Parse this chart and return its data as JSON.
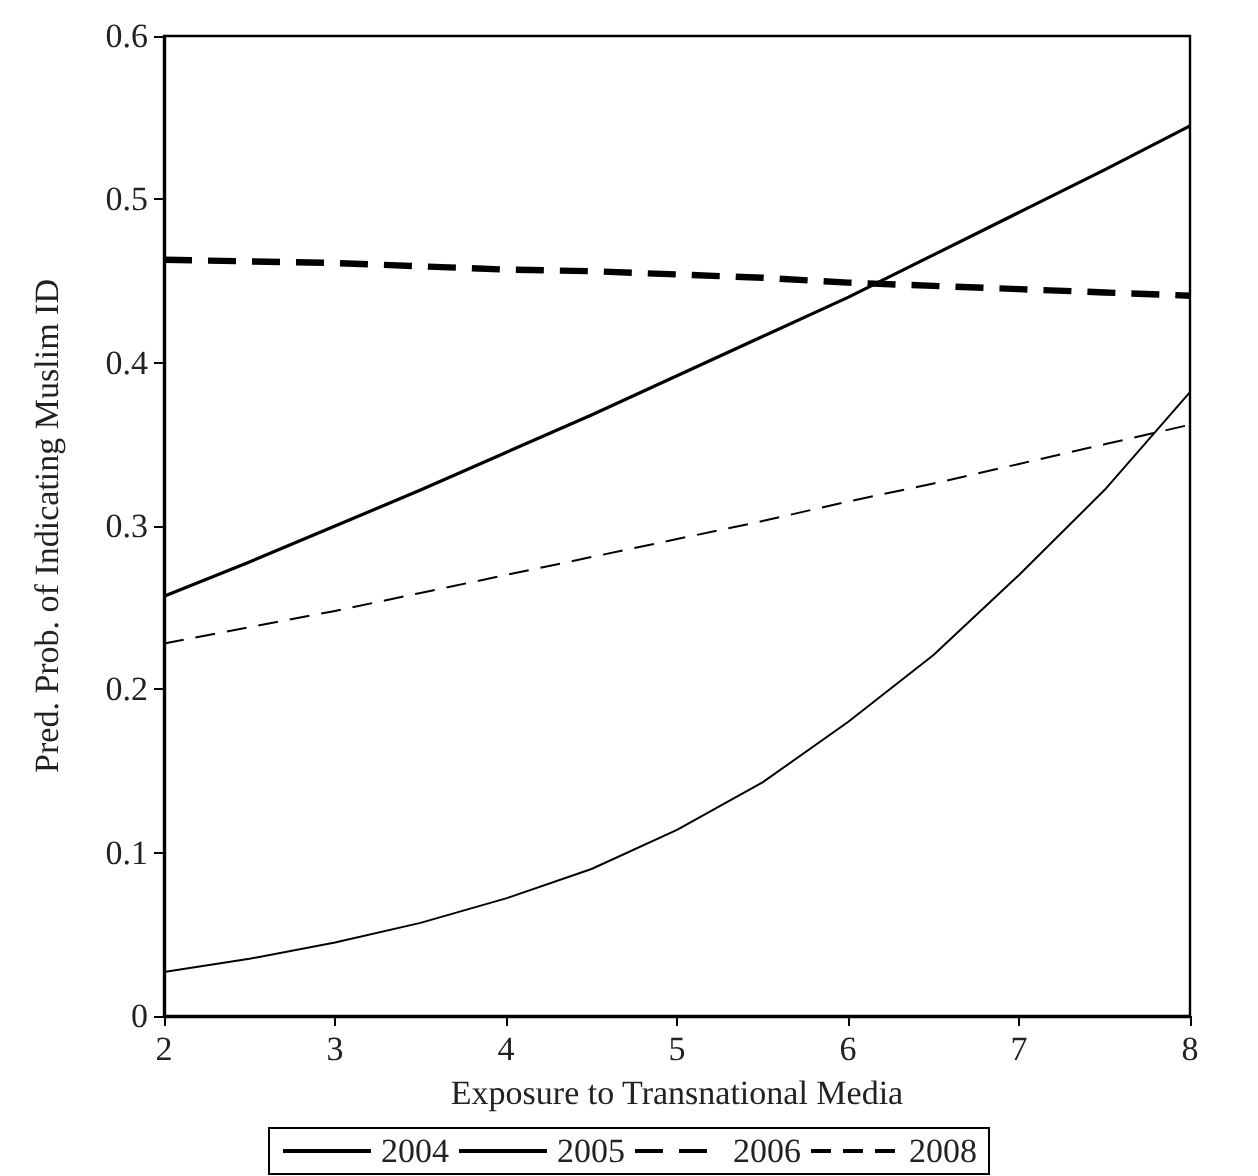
{
  "chart_data": {
    "type": "line",
    "xlabel": "Exposure to Transnational Media",
    "ylabel": "Pred. Prob. of Indicating Muslim ID",
    "x": [
      2,
      2.5,
      3,
      3.5,
      4,
      4.5,
      5,
      5.5,
      6,
      6.5,
      7,
      7.5,
      8
    ],
    "series": [
      {
        "name": "2004",
        "color": "#000000",
        "line_style": "solid",
        "values": [
          0.257,
          0.278,
          0.3,
          0.322,
          0.345,
          0.368,
          0.392,
          0.416,
          0.44,
          0.466,
          0.492,
          0.518,
          0.545
        ]
      },
      {
        "name": "2005",
        "color": "#000000",
        "line_style": "solid",
        "values": [
          0.027,
          0.035,
          0.045,
          0.057,
          0.072,
          0.09,
          0.114,
          0.143,
          0.18,
          0.221,
          0.27,
          0.322,
          0.382
        ]
      },
      {
        "name": "2006",
        "color": "#000000",
        "line_style": "dashed",
        "values": [
          0.463,
          0.462,
          0.461,
          0.459,
          0.457,
          0.456,
          0.454,
          0.452,
          0.449,
          0.447,
          0.445,
          0.443,
          0.441
        ]
      },
      {
        "name": "2008",
        "color": "#000000",
        "line_style": "dashed",
        "values": [
          0.228,
          0.238,
          0.248,
          0.259,
          0.27,
          0.281,
          0.292,
          0.303,
          0.315,
          0.326,
          0.338,
          0.35,
          0.362
        ]
      }
    ],
    "xlim": [
      2,
      8
    ],
    "xticks": [
      2,
      3,
      4,
      5,
      6,
      7,
      8
    ],
    "ylim": [
      0,
      0.6
    ],
    "yticks": [
      0,
      0.1,
      0.2,
      0.3,
      0.4,
      0.5,
      0.6
    ],
    "grid": false,
    "legend": "bottom",
    "marker": "none"
  }
}
